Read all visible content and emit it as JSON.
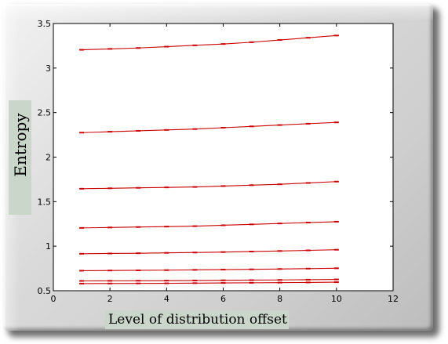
{
  "chart_data": {
    "type": "line",
    "title": "",
    "xlabel": "Level of distribution offset",
    "ylabel": "Entropy",
    "xlim": [
      0,
      12
    ],
    "ylim": [
      0.5,
      3.5
    ],
    "xticks": [
      0,
      2,
      4,
      6,
      8,
      10,
      12
    ],
    "yticks": [
      0.5,
      1,
      1.5,
      2,
      2.5,
      3,
      3.5
    ],
    "x": [
      1,
      2,
      3,
      4,
      5,
      6,
      7,
      8,
      9,
      10
    ],
    "line_color": "#cc0000",
    "grid": false,
    "series": [
      {
        "values": [
          3.205,
          3.215,
          3.225,
          3.24,
          3.255,
          3.27,
          3.29,
          3.315,
          3.34,
          3.365
        ]
      },
      {
        "values": [
          2.275,
          2.285,
          2.295,
          2.305,
          2.315,
          2.33,
          2.345,
          2.36,
          2.375,
          2.39
        ]
      },
      {
        "values": [
          1.645,
          1.65,
          1.655,
          1.66,
          1.665,
          1.675,
          1.685,
          1.695,
          1.71,
          1.725
        ]
      },
      {
        "values": [
          1.205,
          1.21,
          1.215,
          1.22,
          1.225,
          1.235,
          1.245,
          1.255,
          1.265,
          1.275
        ]
      },
      {
        "values": [
          0.915,
          0.918,
          0.921,
          0.925,
          0.929,
          0.934,
          0.94,
          0.946,
          0.953,
          0.96
        ]
      },
      {
        "values": [
          0.725,
          0.727,
          0.729,
          0.731,
          0.734,
          0.737,
          0.74,
          0.744,
          0.748,
          0.752
        ]
      },
      {
        "values": [
          0.61,
          0.611,
          0.612,
          0.613,
          0.615,
          0.617,
          0.619,
          0.621,
          0.624,
          0.627
        ]
      },
      {
        "values": [
          0.58,
          0.581,
          0.582,
          0.583,
          0.585,
          0.587,
          0.589,
          0.591,
          0.593,
          0.596
        ]
      }
    ]
  }
}
